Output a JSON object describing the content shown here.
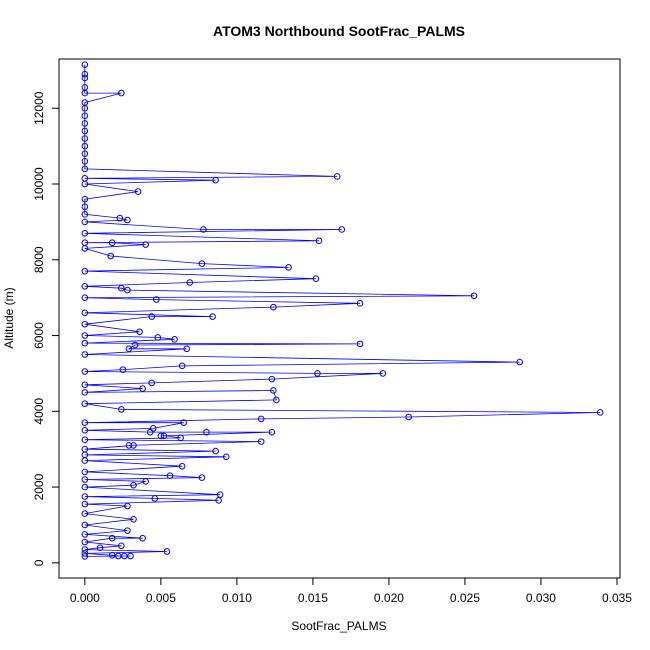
{
  "chart_data": {
    "type": "line",
    "title": "ATOM3 Northbound SootFrac_PALMS",
    "xlabel": "SootFrac_PALMS",
    "ylabel": "Altitude (m)",
    "xlim": [
      -0.0017,
      0.0352
    ],
    "ylim": [
      -400,
      13300
    ],
    "x_ticks": [
      0.0,
      0.005,
      0.01,
      0.015,
      0.02,
      0.025,
      0.03,
      0.035
    ],
    "x_tick_labels": [
      "0.000",
      "0.005",
      "0.010",
      "0.015",
      "0.020",
      "0.025",
      "0.030",
      "0.035"
    ],
    "y_ticks": [
      0,
      2000,
      4000,
      6000,
      8000,
      10000,
      12000
    ],
    "y_tick_labels": [
      "0",
      "2000",
      "4000",
      "6000",
      "8000",
      "10000",
      "12000"
    ],
    "grid": false,
    "legend": "none",
    "series": [
      {
        "color": "#0000ff",
        "marker": "open-circle",
        "points": [
          [
            0.0,
            13150
          ],
          [
            0.0,
            12900
          ],
          [
            0.0,
            12800
          ],
          [
            0.0,
            12550
          ],
          [
            0.0,
            12400
          ],
          [
            0.0024,
            12400
          ],
          [
            0.0,
            12150
          ],
          [
            0.0,
            12000
          ],
          [
            0.0,
            11800
          ],
          [
            0.0,
            11600
          ],
          [
            0.0,
            11400
          ],
          [
            0.0,
            11200
          ],
          [
            0.0,
            11000
          ],
          [
            0.0,
            10800
          ],
          [
            0.0,
            10600
          ],
          [
            0.0,
            10400
          ],
          [
            0.0166,
            10200
          ],
          [
            0.0,
            10150
          ],
          [
            0.0086,
            10100
          ],
          [
            0.0,
            10000
          ],
          [
            0.0035,
            9800
          ],
          [
            0.0,
            9600
          ],
          [
            0.0,
            9400
          ],
          [
            0.0,
            9200
          ],
          [
            0.0023,
            9100
          ],
          [
            0.0028,
            9050
          ],
          [
            0.0,
            9000
          ],
          [
            0.0078,
            8800
          ],
          [
            0.0169,
            8800
          ],
          [
            0.0,
            8700
          ],
          [
            0.0154,
            8500
          ],
          [
            0.0,
            8450
          ],
          [
            0.0018,
            8450
          ],
          [
            0.004,
            8400
          ],
          [
            0.0,
            8300
          ],
          [
            0.0017,
            8100
          ],
          [
            0.0077,
            7900
          ],
          [
            0.0134,
            7800
          ],
          [
            0.0,
            7700
          ],
          [
            0.0152,
            7500
          ],
          [
            0.0069,
            7400
          ],
          [
            0.0,
            7300
          ],
          [
            0.0024,
            7250
          ],
          [
            0.0028,
            7200
          ],
          [
            0.0256,
            7050
          ],
          [
            0.0,
            7000
          ],
          [
            0.0047,
            6950
          ],
          [
            0.0181,
            6850
          ],
          [
            0.0124,
            6750
          ],
          [
            0.0,
            6600
          ],
          [
            0.0084,
            6500
          ],
          [
            0.0044,
            6500
          ],
          [
            0.0,
            6300
          ],
          [
            0.0036,
            6100
          ],
          [
            0.0,
            6000
          ],
          [
            0.0048,
            5950
          ],
          [
            0.0059,
            5900
          ],
          [
            0.0,
            5800
          ],
          [
            0.0181,
            5780
          ],
          [
            0.0033,
            5750
          ],
          [
            0.0029,
            5650
          ],
          [
            0.0067,
            5650
          ],
          [
            0.0,
            5500
          ],
          [
            0.0286,
            5300
          ],
          [
            0.0064,
            5200
          ],
          [
            0.0025,
            5100
          ],
          [
            0.0,
            5050
          ],
          [
            0.0153,
            5000
          ],
          [
            0.0196,
            5000
          ],
          [
            0.0123,
            4850
          ],
          [
            0.0044,
            4750
          ],
          [
            0.0,
            4700
          ],
          [
            0.0038,
            4600
          ],
          [
            0.0,
            4500
          ],
          [
            0.0124,
            4550
          ],
          [
            0.0126,
            4300
          ],
          [
            0.0,
            4200
          ],
          [
            0.0024,
            4050
          ],
          [
            0.0339,
            3970
          ],
          [
            0.0213,
            3850
          ],
          [
            0.0116,
            3800
          ],
          [
            0.0,
            3700
          ],
          [
            0.0065,
            3700
          ],
          [
            0.0045,
            3550
          ],
          [
            0.0,
            3500
          ],
          [
            0.0043,
            3450
          ],
          [
            0.008,
            3450
          ],
          [
            0.0123,
            3450
          ],
          [
            0.005,
            3350
          ],
          [
            0.0052,
            3350
          ],
          [
            0.0063,
            3300
          ],
          [
            0.0,
            3250
          ],
          [
            0.0116,
            3200
          ],
          [
            0.0029,
            3100
          ],
          [
            0.0032,
            3100
          ],
          [
            0.0,
            3000
          ],
          [
            0.0086,
            2950
          ],
          [
            0.0,
            2850
          ],
          [
            0.0093,
            2800
          ],
          [
            0.0,
            2700
          ],
          [
            0.0064,
            2550
          ],
          [
            0.0,
            2400
          ],
          [
            0.0056,
            2300
          ],
          [
            0.0077,
            2250
          ],
          [
            0.0,
            2200
          ],
          [
            0.004,
            2150
          ],
          [
            0.0032,
            2050
          ],
          [
            0.0,
            2000
          ],
          [
            0.0089,
            1800
          ],
          [
            0.0,
            1750
          ],
          [
            0.0046,
            1700
          ],
          [
            0.0088,
            1650
          ],
          [
            0.0,
            1550
          ],
          [
            0.0028,
            1500
          ],
          [
            0.0,
            1300
          ],
          [
            0.0032,
            1150
          ],
          [
            0.0,
            1000
          ],
          [
            0.0028,
            850
          ],
          [
            0.0,
            750
          ],
          [
            0.0038,
            650
          ],
          [
            0.0018,
            650
          ],
          [
            0.0,
            550
          ],
          [
            0.0024,
            450
          ],
          [
            0.001,
            400
          ],
          [
            0.0,
            350
          ],
          [
            0.0054,
            300
          ],
          [
            0.0,
            250
          ],
          [
            0.0018,
            200
          ],
          [
            0.0022,
            180
          ],
          [
            0.0026,
            180
          ],
          [
            0.003,
            180
          ],
          [
            0.0,
            170
          ]
        ]
      }
    ]
  }
}
